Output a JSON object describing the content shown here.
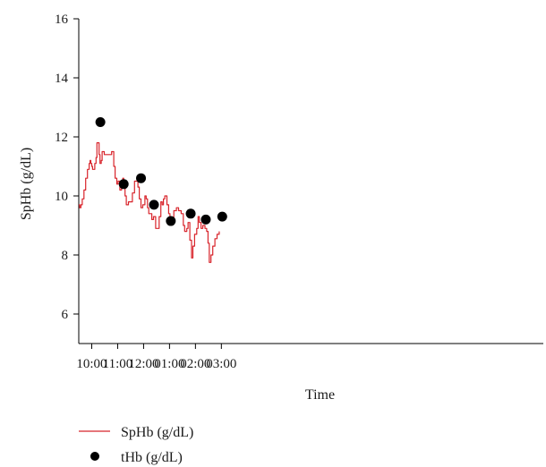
{
  "chart_data": {
    "type": "line",
    "title": "",
    "xlabel": "Time",
    "ylabel": "SpHb (g/dL)",
    "ylim": [
      5,
      16
    ],
    "yticks": [
      6,
      8,
      10,
      12,
      14,
      16
    ],
    "xlim": [
      "09:30",
      "03:25"
    ],
    "xticks": [
      {
        "t": "10:00",
        "label": "10:00"
      },
      {
        "t": "11:00",
        "label": "11:00"
      },
      {
        "t": "12:00",
        "label": "12:00"
      },
      {
        "t": "13:00",
        "label": "01:00"
      },
      {
        "t": "14:00",
        "label": "02:00"
      },
      {
        "t": "15:00",
        "label": "03:00"
      }
    ],
    "grid": false,
    "legend_position": "bottom-left",
    "series": [
      {
        "name": "SpHb (g/dL)",
        "kind": "line",
        "color": "#d8242b",
        "step": true,
        "points": [
          [
            "09:30",
            9.7
          ],
          [
            "09:32",
            9.6
          ],
          [
            "09:35",
            9.7
          ],
          [
            "09:38",
            9.9
          ],
          [
            "09:42",
            10.2
          ],
          [
            "09:46",
            10.6
          ],
          [
            "09:50",
            10.9
          ],
          [
            "09:54",
            11.1
          ],
          [
            "09:56",
            11.2
          ],
          [
            "09:58",
            11.1
          ],
          [
            "10:00",
            11.0
          ],
          [
            "10:02",
            10.9
          ],
          [
            "10:06",
            10.9
          ],
          [
            "10:07",
            11.1
          ],
          [
            "10:10",
            11.3
          ],
          [
            "10:12",
            11.8
          ],
          [
            "10:15",
            11.8
          ],
          [
            "10:17",
            11.4
          ],
          [
            "10:19",
            11.1
          ],
          [
            "10:22",
            11.2
          ],
          [
            "10:24",
            11.5
          ],
          [
            "10:29",
            11.4
          ],
          [
            "10:46",
            11.5
          ],
          [
            "10:51",
            11.0
          ],
          [
            "10:54",
            10.6
          ],
          [
            "10:58",
            10.4
          ],
          [
            "11:01",
            10.5
          ],
          [
            "11:05",
            10.2
          ],
          [
            "11:09",
            10.4
          ],
          [
            "11:12",
            10.6
          ],
          [
            "11:14",
            10.4
          ],
          [
            "11:17",
            10.0
          ],
          [
            "11:20",
            9.7
          ],
          [
            "11:25",
            9.8
          ],
          [
            "11:34",
            10.1
          ],
          [
            "11:39",
            10.5
          ],
          [
            "11:44",
            10.5
          ],
          [
            "11:47",
            10.3
          ],
          [
            "11:50",
            9.9
          ],
          [
            "11:54",
            9.6
          ],
          [
            "11:58",
            9.7
          ],
          [
            "12:03",
            10.0
          ],
          [
            "12:06",
            9.9
          ],
          [
            "12:09",
            9.6
          ],
          [
            "12:12",
            9.4
          ],
          [
            "12:16",
            9.4
          ],
          [
            "12:19",
            9.2
          ],
          [
            "12:23",
            9.3
          ],
          [
            "12:26",
            9.3
          ],
          [
            "12:28",
            8.9
          ],
          [
            "12:33",
            8.9
          ],
          [
            "12:36",
            9.3
          ],
          [
            "12:40",
            9.8
          ],
          [
            "12:43",
            9.7
          ],
          [
            "12:46",
            9.9
          ],
          [
            "12:49",
            10.0
          ],
          [
            "12:54",
            9.7
          ],
          [
            "12:58",
            9.4
          ],
          [
            "13:01",
            9.1
          ],
          [
            "13:05",
            9.2
          ],
          [
            "13:10",
            9.5
          ],
          [
            "13:16",
            9.6
          ],
          [
            "13:21",
            9.5
          ],
          [
            "13:27",
            9.4
          ],
          [
            "13:32",
            9.0
          ],
          [
            "13:35",
            8.8
          ],
          [
            "13:40",
            8.9
          ],
          [
            "13:43",
            9.1
          ],
          [
            "13:47",
            8.5
          ],
          [
            "13:51",
            7.9
          ],
          [
            "13:54",
            8.3
          ],
          [
            "13:58",
            8.7
          ],
          [
            "14:03",
            8.9
          ],
          [
            "14:06",
            9.3
          ],
          [
            "14:09",
            9.1
          ],
          [
            "14:13",
            8.9
          ],
          [
            "14:17",
            9.0
          ],
          [
            "14:22",
            8.9
          ],
          [
            "14:26",
            8.8
          ],
          [
            "14:29",
            8.4
          ],
          [
            "14:32",
            7.75
          ],
          [
            "14:36",
            8.0
          ],
          [
            "14:40",
            8.3
          ],
          [
            "14:45",
            8.55
          ],
          [
            "14:50",
            8.7
          ],
          [
            "14:55",
            8.8
          ]
        ]
      },
      {
        "name": "tHb (g/dL)",
        "kind": "scatter",
        "color": "#000000",
        "points": [
          [
            "10:20",
            12.5
          ],
          [
            "11:14",
            10.4
          ],
          [
            "11:54",
            10.6
          ],
          [
            "12:24",
            9.7
          ],
          [
            "13:03",
            9.15
          ],
          [
            "13:49",
            9.4
          ],
          [
            "14:24",
            9.2
          ],
          [
            "15:02",
            9.3
          ]
        ]
      }
    ]
  }
}
